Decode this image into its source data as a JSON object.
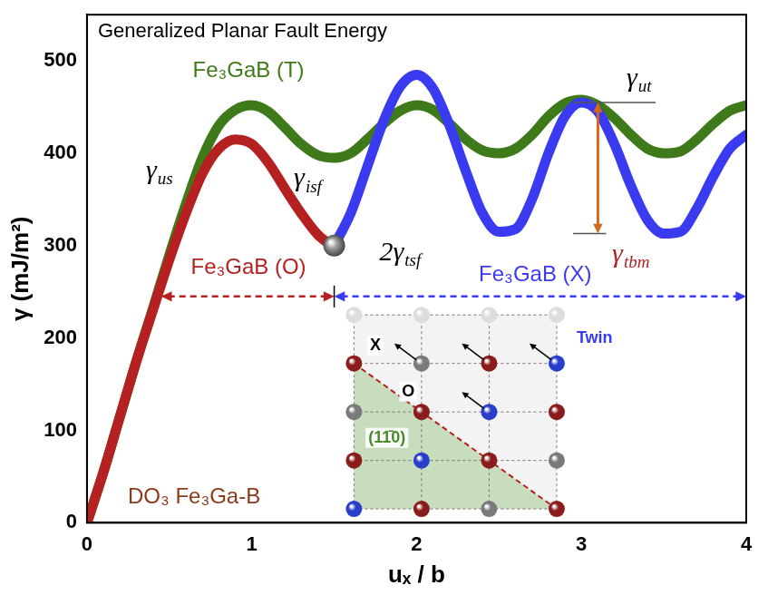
{
  "chart_data": {
    "type": "line",
    "title": "Generalized Planar Fault Energy",
    "x_label": "uₓ / b",
    "y_label": "γ (mJ/m²)",
    "x": [
      0,
      0.1,
      0.2,
      0.3,
      0.4,
      0.5,
      0.6,
      0.7,
      0.8,
      0.9,
      1,
      1.1,
      1.2,
      1.3,
      1.4,
      1.5,
      1.6,
      1.7,
      1.8,
      1.9,
      2,
      2.1,
      2.2,
      2.3,
      2.4,
      2.5,
      2.6,
      2.7,
      2.8,
      2.9,
      3,
      3.1,
      3.2,
      3.3,
      3.4,
      3.5,
      3.6,
      3.7,
      3.8,
      3.9,
      4
    ],
    "series": [
      {
        "name": "Fe₃GaB (T)",
        "color": "#3f7a1a",
        "values": [
          0,
          55,
          115,
          175,
          232,
          290,
          345,
          395,
          430,
          447,
          452,
          445,
          428,
          410,
          398,
          395,
          400,
          415,
          432,
          446,
          452,
          447,
          432,
          415,
          403,
          400,
          405,
          420,
          440,
          454,
          458,
          452,
          438,
          420,
          405,
          400,
          402,
          415,
          432,
          446,
          452
        ]
      },
      {
        "name": "Fe₃GaB (O)",
        "color": "#b52020",
        "values": [
          0,
          55,
          115,
          175,
          230,
          285,
          335,
          378,
          405,
          415,
          410,
          390,
          362,
          335,
          312,
          298,
          null,
          null,
          null,
          null,
          null,
          null,
          null,
          null,
          null,
          null,
          null,
          null,
          null,
          null,
          null,
          null,
          null,
          null,
          null,
          null,
          null,
          null,
          null,
          null,
          null
        ]
      },
      {
        "name": "Fe₃GaB (X)",
        "color": "#3a3af0",
        "values": [
          null,
          null,
          null,
          null,
          null,
          null,
          null,
          null,
          null,
          null,
          null,
          null,
          null,
          null,
          null,
          300,
          335,
          385,
          435,
          472,
          485,
          470,
          430,
          380,
          335,
          315,
          318,
          350,
          400,
          440,
          455,
          445,
          410,
          365,
          328,
          313,
          315,
          340,
          375,
          405,
          420
        ]
      }
    ],
    "xlim": [
      0,
      4
    ],
    "xticks": [
      0,
      1,
      2,
      3,
      4
    ],
    "ylim": [
      0,
      550
    ],
    "yticks": [
      0,
      100,
      200,
      300,
      400,
      500
    ],
    "grid": false,
    "annotations": [
      {
        "text": "γ",
        "subscript": "us"
      },
      {
        "text": "γ",
        "subscript": "isf"
      },
      {
        "text": "2γ",
        "subscript": "tsf"
      },
      {
        "text": "γ",
        "subscript": "ut"
      },
      {
        "text": "γ",
        "subscript": "tbm",
        "color": "#b52020"
      },
      {
        "text": "DO₃ Fe₃Ga-B",
        "color": "#8b3a1a"
      },
      {
        "text": "X"
      },
      {
        "text": "O"
      },
      {
        "text": "Twin",
        "color": "#3a3af0"
      },
      {
        "text": "(11̄0)",
        "color": "#4a8a2a"
      }
    ]
  }
}
